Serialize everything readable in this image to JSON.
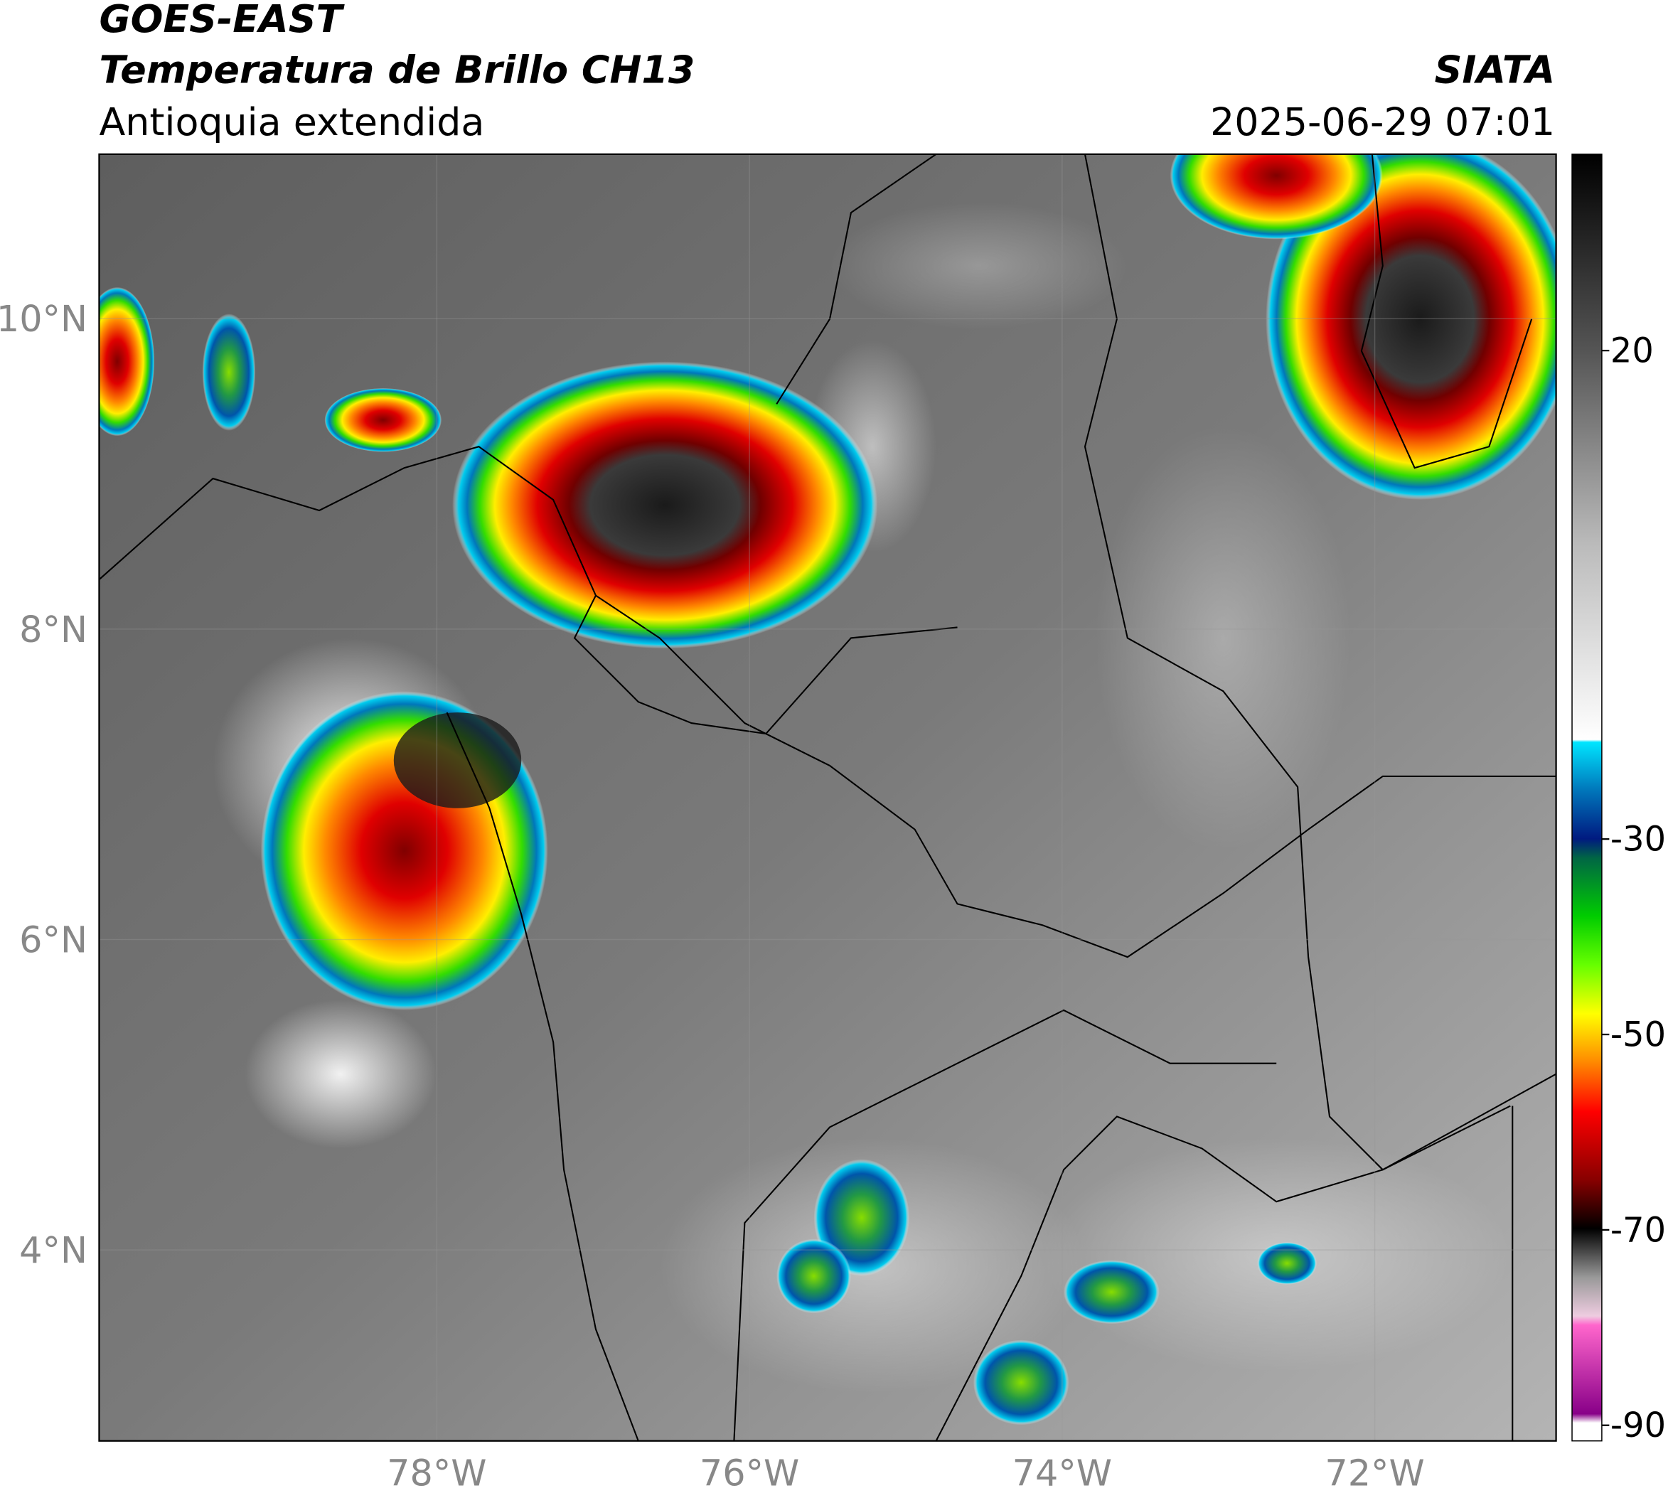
{
  "header": {
    "satellite": "GOES-EAST",
    "product": "Temperatura de Brillo CH13",
    "region": "Antioquia extendida",
    "source": "SIATA",
    "datetime": "2025-06-29 07:01"
  },
  "map": {
    "xlim": [
      -80.16,
      -70.84
    ],
    "ylim": [
      2.77,
      11.06
    ],
    "xticks": [
      {
        "value": -78,
        "label": "78°W"
      },
      {
        "value": -76,
        "label": "76°W"
      },
      {
        "value": -74,
        "label": "74°W"
      },
      {
        "value": -72,
        "label": "72°W"
      }
    ],
    "yticks": [
      {
        "value": 4,
        "label": "4°N"
      },
      {
        "value": 6,
        "label": "6°N"
      },
      {
        "value": 8,
        "label": "8°N"
      },
      {
        "value": 10,
        "label": "10°N"
      }
    ],
    "grid": true
  },
  "colorbar": {
    "lim": [
      -91.6,
      40.1
    ],
    "ticks": [
      -90,
      -70,
      -50,
      -30,
      20
    ]
  }
}
